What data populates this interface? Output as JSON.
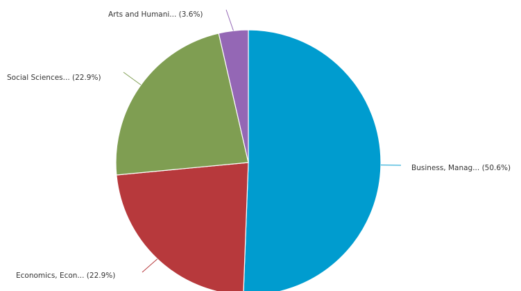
{
  "chart_data": {
    "type": "pie",
    "title": "",
    "slices": [
      {
        "name": "Business, Manag...",
        "value": 50.6,
        "label": "Business, Manag... (50.6%)",
        "color": "#009ccf"
      },
      {
        "name": "Economics, Econ...",
        "value": 22.9,
        "label": "Economics, Econ... (22.9%)",
        "color": "#b7393c"
      },
      {
        "name": "Social Sciences...",
        "value": 22.9,
        "label": "Social Sciences... (22.9%)",
        "color": "#7f9e52"
      },
      {
        "name": "Arts and Humani...",
        "value": 3.6,
        "label": "Arts and Humani... (3.6%)",
        "color": "#9467b5"
      }
    ],
    "start_angle": "12 o'clock",
    "direction": "clockwise",
    "labels_position": "outside with leader lines",
    "legend": "none"
  }
}
